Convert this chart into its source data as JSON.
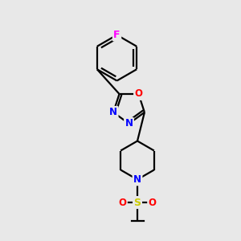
{
  "bg_color": "#e8e8e8",
  "atom_colors": {
    "C": "#000000",
    "N": "#0000ff",
    "O": "#ff0000",
    "F": "#ff00ff",
    "S": "#cccc00"
  },
  "bond_color": "#000000",
  "figsize": [
    3.0,
    3.0
  ],
  "dpi": 100,
  "lw": 1.6
}
